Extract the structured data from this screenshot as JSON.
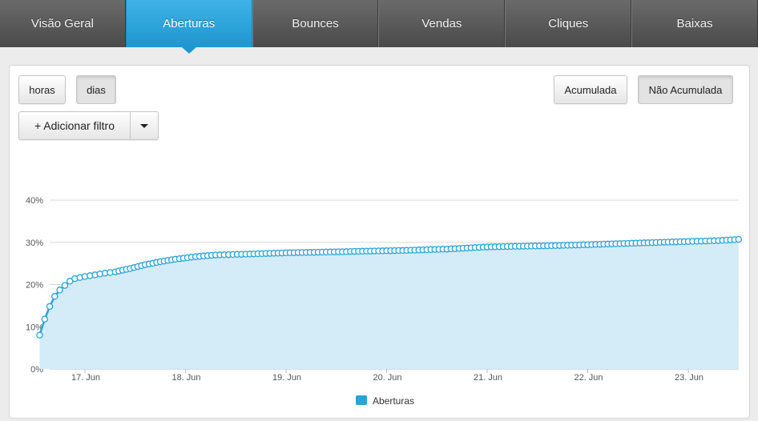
{
  "tabs": [
    {
      "label": "Visão Geral",
      "active": false
    },
    {
      "label": "Aberturas",
      "active": true
    },
    {
      "label": "Bounces",
      "active": false
    },
    {
      "label": "Vendas",
      "active": false
    },
    {
      "label": "Cliques",
      "active": false
    },
    {
      "label": "Baixas",
      "active": false
    }
  ],
  "controls": {
    "horas": "horas",
    "dias": "dias",
    "acumulada": "Acumulada",
    "nao_acumulada": "Não Acumulada",
    "add_filter": "+ Adicionar filtro"
  },
  "colors": {
    "accent": "#29a3d9",
    "area": "#d3ecf7",
    "tab_bar": "#555555"
  },
  "chart_data": {
    "type": "area",
    "title": "",
    "xlabel": "",
    "ylabel": "",
    "ylim": [
      0,
      40
    ],
    "y_ticks": [
      "0%",
      "10%",
      "20%",
      "30%",
      "40%"
    ],
    "x_ticks": [
      "17. Jun",
      "18. Jun",
      "19. Jun",
      "20. Jun",
      "21. Jun",
      "22. Jun",
      "23. Jun"
    ],
    "x_range_days": [
      16.55,
      23.5
    ],
    "legend": "bottom-center",
    "series": [
      {
        "name": "Aberturas",
        "points": [
          [
            16.55,
            8.0
          ],
          [
            16.6,
            11.8
          ],
          [
            16.65,
            14.8
          ],
          [
            16.7,
            17.2
          ],
          [
            16.75,
            18.7
          ],
          [
            16.8,
            19.8
          ],
          [
            16.85,
            20.8
          ],
          [
            16.9,
            21.4
          ],
          [
            17.0,
            21.9
          ],
          [
            17.1,
            22.3
          ],
          [
            17.2,
            22.7
          ],
          [
            17.3,
            23.0
          ],
          [
            17.45,
            23.8
          ],
          [
            17.6,
            24.7
          ],
          [
            17.75,
            25.4
          ],
          [
            17.9,
            26.0
          ],
          [
            18.1,
            26.6
          ],
          [
            18.3,
            27.0
          ],
          [
            18.6,
            27.2
          ],
          [
            19.0,
            27.5
          ],
          [
            19.4,
            27.7
          ],
          [
            19.8,
            27.9
          ],
          [
            20.2,
            28.1
          ],
          [
            20.6,
            28.4
          ],
          [
            21.0,
            28.9
          ],
          [
            21.4,
            29.1
          ],
          [
            21.8,
            29.3
          ],
          [
            22.2,
            29.6
          ],
          [
            22.6,
            29.9
          ],
          [
            23.0,
            30.2
          ],
          [
            23.3,
            30.4
          ],
          [
            23.5,
            30.7
          ]
        ]
      }
    ]
  }
}
